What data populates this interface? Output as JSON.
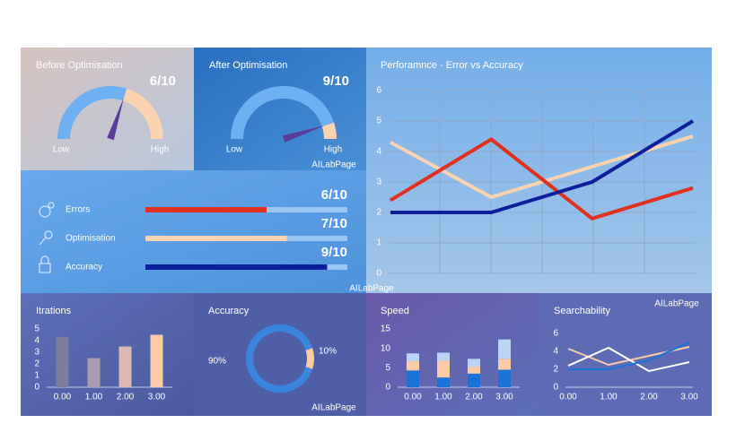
{
  "before": {
    "title": "Before Optimisation",
    "score": "6/10",
    "value": 6,
    "max": 10,
    "low": "Low",
    "high": "High"
  },
  "after": {
    "title": "After Optimisation",
    "score": "9/10",
    "value": 9,
    "max": 10,
    "low": "Low",
    "high": "High",
    "watermark": "AILabPage"
  },
  "metrics": {
    "max": 10,
    "watermark": "AILabPage",
    "items": [
      {
        "name": "Errors",
        "score": "6/10",
        "value": 6,
        "color": "#e0301e"
      },
      {
        "name": "Optimisation",
        "score": "7/10",
        "value": 7,
        "color": "#fbd3b0"
      },
      {
        "name": "Accuracy",
        "score": "9/10",
        "value": 9,
        "color": "#0d1f9a"
      }
    ]
  },
  "performance": {
    "type": "line",
    "title": "Perforamnce - Error vs Accuracy",
    "ylim": [
      0,
      6
    ],
    "yticks": [
      0,
      1,
      2,
      3,
      4,
      5,
      6
    ],
    "grid": true,
    "series": [
      {
        "color": "#fbd3b0",
        "values": [
          4.3,
          2.5,
          3.5,
          4.5
        ]
      },
      {
        "color": "#e0301e",
        "values": [
          2.4,
          4.4,
          1.8,
          2.8
        ]
      },
      {
        "color": "#0d1f9a",
        "values": [
          2,
          2,
          3,
          5
        ]
      }
    ]
  },
  "iterations": {
    "type": "bar",
    "title": "Itrations",
    "categories": [
      "0.00",
      "1.00",
      "2.00",
      "3.00"
    ],
    "values": [
      4.3,
      2.5,
      3.5,
      4.5
    ],
    "colors": [
      "#7b7e9e",
      "#a99cae",
      "#d9b9b2",
      "#f9cba7"
    ],
    "ylim": [
      0,
      5
    ],
    "yticks": [
      0,
      1,
      2,
      3,
      4,
      5
    ]
  },
  "accuracy": {
    "type": "donut",
    "title": "Accuracy",
    "values": [
      90,
      10
    ],
    "value_labels": [
      "90%",
      "10%"
    ],
    "colors": [
      "#3a86de",
      "#f9cba7"
    ],
    "watermark": "AILabPage"
  },
  "speed": {
    "type": "stacked_bar",
    "title": "Speed",
    "categories": [
      "0.00",
      "1.00",
      "2.00",
      "3.00"
    ],
    "ylim": [
      0,
      15
    ],
    "yticks": [
      0,
      5,
      10,
      15
    ],
    "series": [
      {
        "color": "#1a73d8",
        "values": [
          4.3,
          2.5,
          3.5,
          4.5
        ]
      },
      {
        "color": "#f9cba7",
        "values": [
          2.4,
          4.4,
          1.8,
          2.8
        ]
      },
      {
        "color": "#b9d4f5",
        "values": [
          2,
          2,
          2,
          5
        ]
      }
    ]
  },
  "searchability": {
    "type": "line",
    "title": "Searchability",
    "watermark": "AILabPage",
    "categories": [
      "0.00",
      "1.00",
      "2.00",
      "3.00"
    ],
    "ylim": [
      0,
      6
    ],
    "yticks": [
      0,
      2,
      4,
      6
    ],
    "series": [
      {
        "color": "#f9cba7",
        "values": [
          4.3,
          2.5,
          3.5,
          4.5
        ]
      },
      {
        "color": "#ffffff",
        "values": [
          2.4,
          4.4,
          1.8,
          2.8
        ]
      },
      {
        "color": "#1a73d8",
        "values": [
          2,
          2,
          3,
          5
        ]
      }
    ]
  }
}
